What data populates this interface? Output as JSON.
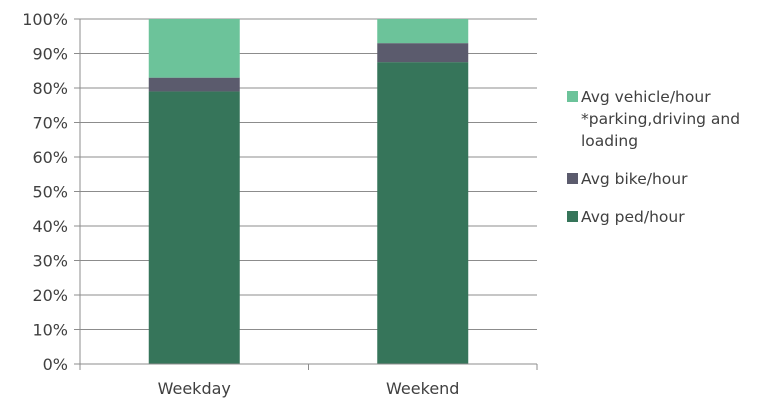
{
  "chart_data": {
    "type": "bar",
    "stacked": true,
    "categories": [
      "Weekday",
      "Weekend"
    ],
    "series": [
      {
        "name": "Avg ped/hour",
        "values": [
          79,
          87.5
        ],
        "color": "#36755a"
      },
      {
        "name": "Avg bike/hour",
        "values": [
          4,
          5.5
        ],
        "color": "#5b5b6d"
      },
      {
        "name": "Avg vehicle/hour *parking,driving and loading",
        "values": [
          17,
          7
        ],
        "color": "#6cc39a"
      }
    ],
    "yticks": [
      "0%",
      "10%",
      "20%",
      "30%",
      "40%",
      "50%",
      "60%",
      "70%",
      "80%",
      "90%",
      "100%"
    ],
    "ylim": [
      0,
      100
    ],
    "grid": true,
    "legend_position": "right",
    "legend": [
      {
        "lines": [
          "Avg vehicle/hour",
          "*parking,driving and",
          "loading"
        ],
        "color": "#6cc39a"
      },
      {
        "lines": [
          "Avg bike/hour"
        ],
        "color": "#5b5b6d"
      },
      {
        "lines": [
          "Avg ped/hour"
        ],
        "color": "#36755a"
      }
    ]
  }
}
